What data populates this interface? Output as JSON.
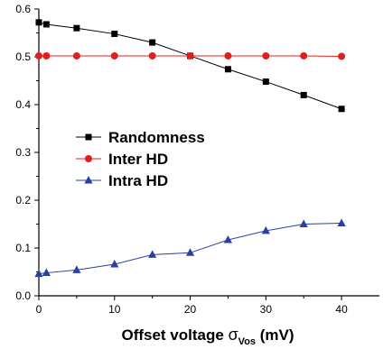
{
  "chart_data": {
    "type": "line",
    "title": "",
    "xlabel_main": "Offset voltage ",
    "xlabel_sigma": "σ",
    "xlabel_subscript": "Vos",
    "xlabel_unit": " (mV)",
    "ylabel": "",
    "xlim": [
      0,
      45
    ],
    "ylim": [
      0,
      0.6
    ],
    "x_ticks": [
      0,
      10,
      20,
      30,
      40
    ],
    "x_tick_labels": [
      "0",
      "10",
      "20",
      "30",
      "40"
    ],
    "y_ticks": [
      0.0,
      0.1,
      0.2,
      0.3,
      0.4,
      0.5,
      0.6
    ],
    "y_tick_labels": [
      "0.0",
      "0.1",
      "0.2",
      "0.3",
      "0.4",
      "0.5",
      "0.6"
    ],
    "grid": false,
    "legend_position": "center-left",
    "x": [
      0,
      1,
      5,
      10,
      15,
      20,
      25,
      30,
      35,
      40
    ],
    "series": [
      {
        "name": "Randomness",
        "marker": "square",
        "color": "#000000",
        "values": [
          0.572,
          0.568,
          0.56,
          0.548,
          0.53,
          0.502,
          0.474,
          0.448,
          0.42,
          0.391
        ]
      },
      {
        "name": "Inter HD",
        "marker": "circle",
        "color": "#e41c1c",
        "values": [
          0.502,
          0.502,
          0.502,
          0.502,
          0.502,
          0.502,
          0.502,
          0.502,
          0.502,
          0.501
        ]
      },
      {
        "name": "Intra HD",
        "marker": "triangle",
        "color": "#2a3fa0",
        "values": [
          0.046,
          0.048,
          0.054,
          0.066,
          0.086,
          0.09,
          0.117,
          0.136,
          0.15,
          0.152
        ]
      }
    ]
  }
}
